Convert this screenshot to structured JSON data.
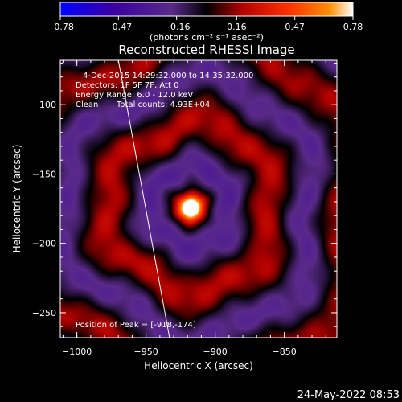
{
  "chart_data": {
    "type": "heatmap",
    "title": "Reconstructed RHESSI Image",
    "xlabel": "Heliocentric X (arcsec)",
    "ylabel": "Heliocentric Y (arcsec)",
    "xlim": [
      -1012,
      -812
    ],
    "ylim": [
      -268,
      -68
    ],
    "xticks": [
      -1000,
      -950,
      -900,
      -850
    ],
    "xtick_labels": [
      "−1000",
      "−950",
      "−900",
      "−850"
    ],
    "yticks": [
      -100,
      -150,
      -200,
      -250
    ],
    "ytick_labels": [
      "−100",
      "−150",
      "−200",
      "−250"
    ],
    "colorbar": {
      "range": [
        -0.78,
        0.78
      ],
      "ticks": [
        -0.78,
        -0.47,
        -0.16,
        0.16,
        0.47,
        0.78
      ],
      "tick_labels": [
        "−0.78",
        "−0.47",
        "−0.16",
        "0.16",
        "0.47",
        "0.78"
      ],
      "unit_label": "(photons cm⁻² s⁻¹ asec⁻²)",
      "colors": [
        "#0000ff",
        "#3a00a0",
        "#5a2a8a",
        "#000000",
        "#b00000",
        "#ff3000",
        "#ff9000",
        "#ffffff"
      ]
    },
    "peak": {
      "x": -918,
      "y": -174
    },
    "annotations": {
      "time_range": "4-Dec-2015 14:29:32.000 to 14:35:32.000",
      "detectors": "Detectors: 1F 5F 7F, Att 0",
      "energy_range": "Energy Range: 6.0 - 12.0 keV",
      "algorithm": "Clean",
      "total_counts": "Total counts: 4.93E+04",
      "peak_position": "Position of Peak = [-918,-174]"
    },
    "limb_line": {
      "x": [
        -970,
        -933
      ],
      "y": [
        -68,
        -268
      ]
    }
  },
  "timestamp": "24-May-2022 08:53"
}
